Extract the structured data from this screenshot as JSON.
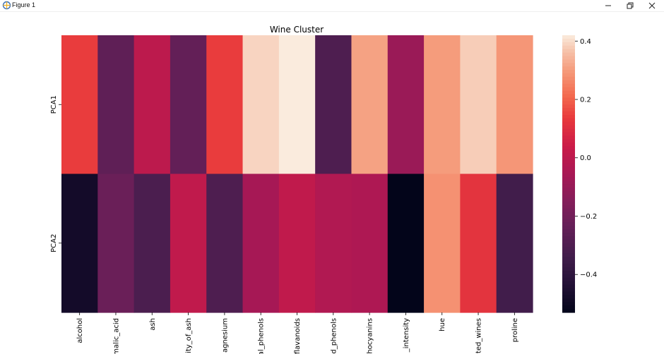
{
  "window": {
    "title": "Figure 1",
    "icon": "python-matplotlib-figure-icon",
    "controls": [
      "minimize-icon",
      "restore-icon",
      "close-icon"
    ]
  },
  "chart_data": {
    "type": "heatmap",
    "title": "Wine Cluster",
    "xlabel": "",
    "ylabel": "",
    "rows": [
      "PCA1",
      "PCA2"
    ],
    "columns": [
      "alcohol",
      "malic_acid",
      "ash",
      "ity_of_ash",
      "agnesium",
      "al_phenols",
      "flavanoids",
      "d_phenols",
      "hocyanins",
      "_intensity",
      "hue",
      "ted_wines",
      "proline"
    ],
    "values": [
      [
        0.14,
        -0.25,
        -0.0,
        -0.24,
        0.14,
        0.39,
        0.42,
        -0.3,
        0.31,
        -0.09,
        0.3,
        0.38,
        0.29
      ],
      [
        -0.48,
        -0.22,
        -0.31,
        0.01,
        -0.3,
        -0.06,
        0.01,
        -0.03,
        -0.04,
        -0.53,
        0.28,
        0.12,
        -0.34
      ]
    ],
    "colorbar": {
      "vmin": -0.53,
      "vmax": 0.42,
      "ticks": [
        0.4,
        0.2,
        0.0,
        -0.2,
        -0.4
      ],
      "tick_labels": [
        "0.4",
        "0.2",
        "0.0",
        "−0.2",
        "−0.4"
      ]
    },
    "colormap": "rocket",
    "grid": false
  }
}
